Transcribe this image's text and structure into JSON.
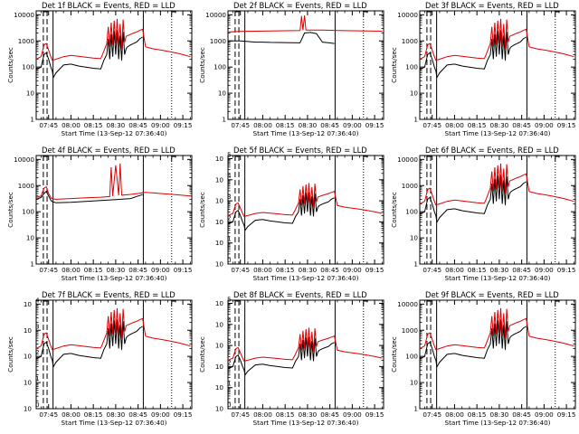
{
  "panels": [
    {
      "title": "Det 1f BLACK = Events, RED = LLD",
      "ytick_labels": [
        "1",
        "10",
        "100",
        "1000",
        "10000"
      ],
      "ytick_powers": [
        0,
        1,
        2,
        3,
        4
      ],
      "exponential_labels": false
    },
    {
      "title": "Det 2f BLACK = Events, RED = LLD",
      "ytick_labels": [
        "1",
        "10",
        "100",
        "1000",
        "10000"
      ],
      "ytick_powers": [
        0,
        1,
        2,
        3,
        4
      ],
      "exponential_labels": false
    },
    {
      "title": "Det 3f BLACK = Events, RED = LLD",
      "ytick_labels": [
        "1",
        "10",
        "100",
        "1000",
        "10000"
      ],
      "ytick_powers": [
        0,
        1,
        2,
        3,
        4
      ],
      "exponential_labels": false
    },
    {
      "title": "Det 4f BLACK = Events, RED = LLD",
      "ytick_labels": [
        "1",
        "10",
        "100",
        "1000",
        "10000"
      ],
      "ytick_powers": [
        0,
        1,
        2,
        3,
        4
      ],
      "exponential_labels": false
    },
    {
      "title": "Det 5f BLACK = Events, RED = LLD",
      "ytick_labels": [
        "10",
        "10",
        "10",
        "10",
        "10",
        "10"
      ],
      "ytick_powers": [
        0,
        1,
        2,
        3,
        4,
        5
      ],
      "exponential_labels": true
    },
    {
      "title": "Det 6f BLACK = Events, RED = LLD",
      "ytick_labels": [
        "1",
        "10",
        "100",
        "1000",
        "10000"
      ],
      "ytick_powers": [
        0,
        1,
        2,
        3,
        4
      ],
      "exponential_labels": false
    },
    {
      "title": "Det 7f BLACK = Events, RED = LLD",
      "ytick_labels": [
        "10",
        "10",
        "10",
        "10",
        "10"
      ],
      "ytick_powers": [
        0,
        1,
        2,
        3,
        4
      ],
      "exponential_labels": true
    },
    {
      "title": "Det 8f BLACK = Events, RED = LLD",
      "ytick_labels": [
        "10",
        "10",
        "10",
        "10",
        "10",
        "10"
      ],
      "ytick_powers": [
        0,
        1,
        2,
        3,
        4,
        5
      ],
      "exponential_labels": true
    },
    {
      "title": "Det 9f BLACK = Events, RED = LLD",
      "ytick_labels": [
        "1",
        "10",
        "100",
        "1000",
        "10000"
      ],
      "ytick_powers": [
        0,
        1,
        2,
        3,
        4
      ],
      "exponential_labels": false
    }
  ],
  "chart_data": {
    "type": "line",
    "y_scale": "log",
    "ylabel": "Counts/sec",
    "xlabel": "Start Time (13-Sep-12 07:36:40)",
    "xtick_labels": [
      "07:45",
      "08:00",
      "08:15",
      "08:30",
      "08:45",
      "09:00",
      "09:15"
    ],
    "xtick_minutes": [
      45,
      60,
      75,
      90,
      105,
      120,
      135
    ],
    "xlim_minutes": [
      36.7,
      141
    ],
    "legend": "BLACK = Events, RED = LLD",
    "series_colors": {
      "events": "#000000",
      "lld": "#e00000"
    },
    "markers": {
      "dashed_minutes": [
        41.5,
        44
      ],
      "solid_minutes": [
        48,
        108.5
      ],
      "dotted_minutes": [
        127.5
      ]
    },
    "series": [
      {
        "name": "Events",
        "panel": "typical",
        "x": [
          36.7,
          40,
          42,
          43.5,
          45,
          46.5,
          47.5,
          48.2,
          50,
          55,
          60,
          65,
          70,
          75,
          80,
          82,
          84,
          85,
          86,
          87,
          88,
          89,
          90,
          91,
          92,
          93,
          94,
          95,
          96,
          97,
          98,
          100,
          102,
          104,
          106,
          108
        ],
        "y": [
          80,
          100,
          300,
          350,
          200,
          100,
          70,
          40,
          60,
          120,
          130,
          110,
          100,
          90,
          85,
          180,
          300,
          1200,
          200,
          1800,
          250,
          2400,
          300,
          2600,
          200,
          1600,
          180,
          2200,
          300,
          500,
          600,
          700,
          800,
          900,
          1200,
          1400
        ]
      },
      {
        "name": "LLD",
        "panel": "typical",
        "x": [
          36.7,
          40,
          42,
          43.5,
          45,
          46.5,
          47.5,
          50,
          55,
          60,
          65,
          70,
          75,
          80,
          82,
          84,
          85,
          86,
          87,
          88,
          89,
          90,
          91,
          92,
          93,
          94,
          95,
          96,
          97,
          98,
          100,
          102,
          104,
          106,
          108,
          110,
          115,
          120,
          125,
          130,
          135,
          140
        ],
        "y": [
          200,
          250,
          700,
          800,
          450,
          250,
          180,
          200,
          250,
          280,
          260,
          240,
          220,
          210,
          400,
          800,
          3500,
          600,
          5000,
          700,
          6000,
          800,
          7000,
          600,
          4500,
          500,
          6500,
          900,
          1500,
          1600,
          1800,
          2000,
          2200,
          2500,
          2800,
          600,
          500,
          450,
          400,
          350,
          300,
          250
        ]
      },
      {
        "name": "Events",
        "panel": "det2",
        "x": [
          36.7,
          40,
          45,
          50,
          55,
          60,
          65,
          70,
          75,
          80,
          85,
          88,
          92,
          96,
          100,
          104,
          108
        ],
        "y": [
          1000,
          1000,
          1000,
          950,
          900,
          900,
          880,
          870,
          860,
          850,
          840,
          2000,
          2100,
          1900,
          900,
          850,
          800
        ]
      },
      {
        "name": "LLD",
        "panel": "det2",
        "x": [
          36.7,
          45,
          55,
          65,
          75,
          85,
          86,
          87,
          88,
          89,
          90,
          92,
          100,
          110,
          120,
          130,
          140
        ],
        "y": [
          2200,
          2300,
          2350,
          2400,
          2450,
          2500,
          9000,
          2600,
          9500,
          2600,
          2600,
          2600,
          2600,
          2500,
          2450,
          2400,
          2350
        ]
      },
      {
        "name": "Events",
        "panel": "det4",
        "x": [
          36.7,
          40,
          42,
          43.5,
          45,
          47,
          50,
          60,
          70,
          80,
          90,
          100,
          105,
          108
        ],
        "y": [
          300,
          350,
          500,
          600,
          400,
          250,
          220,
          230,
          250,
          270,
          290,
          320,
          400,
          450
        ]
      },
      {
        "name": "LLD",
        "panel": "det4",
        "x": [
          36.7,
          40,
          42,
          43.5,
          45,
          47,
          50,
          60,
          70,
          80,
          86,
          87,
          88,
          90,
          92,
          93,
          94,
          100,
          105,
          110,
          120,
          130,
          140
        ],
        "y": [
          350,
          400,
          800,
          900,
          500,
          320,
          300,
          320,
          340,
          360,
          380,
          5000,
          400,
          6000,
          420,
          7000,
          430,
          460,
          500,
          550,
          500,
          450,
          400
        ]
      }
    ]
  }
}
